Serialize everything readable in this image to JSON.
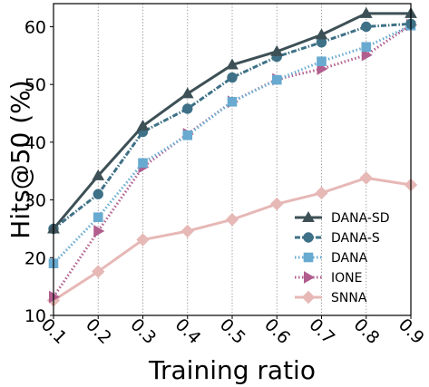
{
  "chart_data": {
    "type": "line",
    "title": "",
    "xlabel": "Training ratio",
    "ylabel": "Hits@50 (%)",
    "x": [
      0.1,
      0.2,
      0.3,
      0.4,
      0.5,
      0.6,
      0.7,
      0.8,
      0.9
    ],
    "x_tick_labels": [
      "0.1",
      "0.2",
      "0.3",
      "0.4",
      "0.5",
      "0.6",
      "0.7",
      "0.8",
      "0.9"
    ],
    "xlim": [
      0.1,
      0.9
    ],
    "ylim": [
      10,
      64
    ],
    "y_ticks": [
      10,
      20,
      30,
      40,
      50,
      60
    ],
    "y_tick_labels": [
      "10",
      "20",
      "30",
      "40",
      "50",
      "60"
    ],
    "grid": "vertical dotted",
    "legend_position": "lower-right",
    "series": [
      {
        "name": "DANA-SD",
        "values": [
          25.0,
          34.2,
          42.8,
          48.4,
          53.4,
          55.7,
          58.6,
          62.3,
          62.3
        ],
        "color": "#3d5056",
        "marker": "triangle",
        "line": "solid"
      },
      {
        "name": "DANA-S",
        "values": [
          25.0,
          31.0,
          41.8,
          45.8,
          51.2,
          54.8,
          57.3,
          60.0,
          60.5
        ],
        "color": "#3e7187",
        "marker": "circle",
        "line": "dashed-dotted"
      },
      {
        "name": "DANA",
        "values": [
          19.0,
          27.0,
          36.4,
          41.2,
          47.0,
          50.8,
          54.0,
          56.5,
          60.2
        ],
        "color": "#68aad0",
        "marker": "square",
        "line": "dotted"
      },
      {
        "name": "IONE",
        "values": [
          13.2,
          24.6,
          35.7,
          41.4,
          47.0,
          50.9,
          52.7,
          55.1,
          60.3
        ],
        "color": "#b15e8e",
        "marker": "triangle-right",
        "line": "dotted"
      },
      {
        "name": "SNNA",
        "values": [
          12.6,
          17.6,
          23.1,
          24.6,
          26.6,
          29.3,
          31.2,
          33.8,
          32.6
        ],
        "color": "#e6b8b6",
        "marker": "diamond",
        "line": "solid"
      }
    ]
  }
}
